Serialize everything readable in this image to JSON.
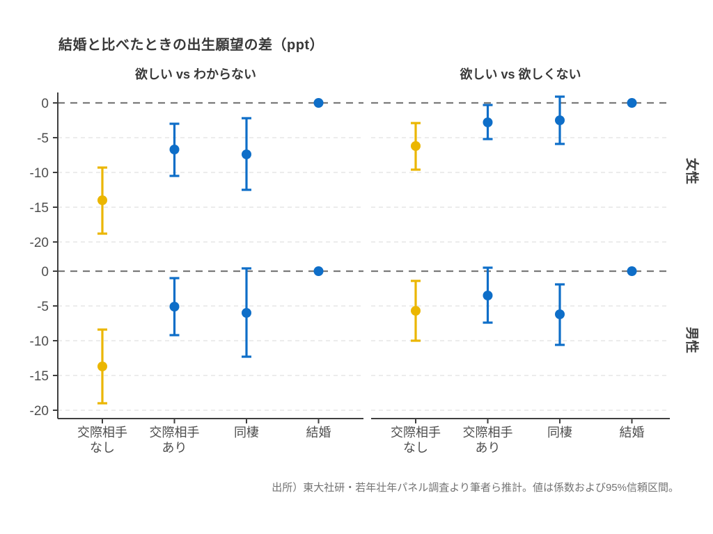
{
  "title": "結婚と比べたときの出生願望の差（ppt）",
  "source_note": "出所）東大社研・若年壮年パネル調査より筆者ら推計。値は係数および95%信頼区間。",
  "colors": {
    "highlight": "#EBB600",
    "primary": "#0E6EC8",
    "zero_line": "#7A7A7A",
    "gridline": "#E6E6E6",
    "axis_line": "#3F3F3F",
    "tick_text": "#4D4D4D"
  },
  "chart_data": {
    "type": "scatter",
    "subtype": "pointrange-errorbar-facets",
    "title": "結婚と比べたときの出生願望の差（ppt）",
    "unit": "ppt",
    "y_ticks": [
      0,
      -5,
      -10,
      -15,
      -20
    ],
    "ylim": [
      1.5,
      -21.2
    ],
    "grid": "dashed-horizontal",
    "zero_reference_line": true,
    "categories": [
      [
        "交際相手",
        "なし"
      ],
      [
        "交際相手",
        "あり"
      ],
      [
        "同棲"
      ],
      [
        "結婚"
      ]
    ],
    "col_facets": [
      "欲しい vs わからない",
      "欲しい vs 欲しくない"
    ],
    "row_facets": [
      "女性",
      "男性"
    ],
    "note": "値は係数および95%信頼区間",
    "panels": [
      {
        "row": "女性",
        "col": "欲しい vs わからない",
        "points": [
          {
            "category": "交際相手なし",
            "estimate": -14.0,
            "ci_low": -18.8,
            "ci_high": -9.3,
            "series": "highlight"
          },
          {
            "category": "交際相手あり",
            "estimate": -6.7,
            "ci_low": -10.5,
            "ci_high": -3.0,
            "series": "primary"
          },
          {
            "category": "同棲",
            "estimate": -7.4,
            "ci_low": -12.5,
            "ci_high": -2.2,
            "series": "primary"
          },
          {
            "category": "結婚",
            "estimate": 0,
            "ci_low": null,
            "ci_high": null,
            "series": "primary"
          }
        ]
      },
      {
        "row": "女性",
        "col": "欲しい vs 欲しくない",
        "points": [
          {
            "category": "交際相手なし",
            "estimate": -6.2,
            "ci_low": -9.6,
            "ci_high": -2.9,
            "series": "highlight"
          },
          {
            "category": "交際相手あり",
            "estimate": -2.8,
            "ci_low": -5.2,
            "ci_high": -0.3,
            "series": "primary"
          },
          {
            "category": "同棲",
            "estimate": -2.5,
            "ci_low": -5.9,
            "ci_high": 0.9,
            "series": "primary"
          },
          {
            "category": "結婚",
            "estimate": 0,
            "ci_low": null,
            "ci_high": null,
            "series": "primary"
          }
        ]
      },
      {
        "row": "男性",
        "col": "欲しい vs わからない",
        "points": [
          {
            "category": "交際相手なし",
            "estimate": -13.7,
            "ci_low": -19.0,
            "ci_high": -8.4,
            "series": "highlight"
          },
          {
            "category": "交際相手あり",
            "estimate": -5.1,
            "ci_low": -9.2,
            "ci_high": -1.0,
            "series": "primary"
          },
          {
            "category": "同棲",
            "estimate": -6.0,
            "ci_low": -12.3,
            "ci_high": 0.4,
            "series": "primary"
          },
          {
            "category": "結婚",
            "estimate": 0,
            "ci_low": null,
            "ci_high": null,
            "series": "primary"
          }
        ]
      },
      {
        "row": "男性",
        "col": "欲しい vs 欲しくない",
        "points": [
          {
            "category": "交際相手なし",
            "estimate": -5.7,
            "ci_low": -10.0,
            "ci_high": -1.4,
            "series": "highlight"
          },
          {
            "category": "交際相手あり",
            "estimate": -3.5,
            "ci_low": -7.4,
            "ci_high": 0.5,
            "series": "primary"
          },
          {
            "category": "同棲",
            "estimate": -6.2,
            "ci_low": -10.6,
            "ci_high": -1.9,
            "series": "primary"
          },
          {
            "category": "結婚",
            "estimate": 0,
            "ci_low": null,
            "ci_high": null,
            "series": "primary"
          }
        ]
      }
    ]
  }
}
